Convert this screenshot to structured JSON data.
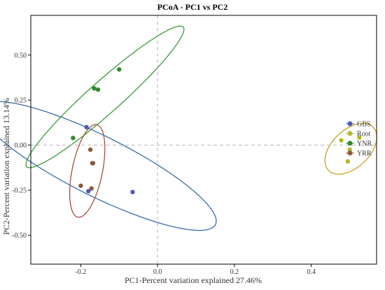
{
  "chart_data": {
    "type": "scatter",
    "title": "PCoA - PC1 vs PC2",
    "xlabel": "PC1-Percent variation explained 27.46%",
    "ylabel": "PC2-Percent variation explained 13.14%",
    "xlim": [
      -0.33,
      0.57
    ],
    "ylim": [
      -0.66,
      0.72
    ],
    "xticks": [
      {
        "value": -0.2,
        "label": "-0.2"
      },
      {
        "value": 0.0,
        "label": "0.0"
      },
      {
        "value": 0.2,
        "label": "0.2"
      },
      {
        "value": 0.4,
        "label": "0.4"
      }
    ],
    "yticks": [
      {
        "value": 0.5,
        "label": "0.50"
      },
      {
        "value": 0.25,
        "label": "0.25"
      },
      {
        "value": 0.0,
        "label": "0.00"
      },
      {
        "value": -0.25,
        "label": "-0.25"
      },
      {
        "value": -0.5,
        "label": "-0.50"
      }
    ],
    "reference_lines": {
      "x": 0,
      "y": 0,
      "style": "dashed"
    },
    "grid": false,
    "legend_position": "right",
    "series": [
      {
        "name": "GBS",
        "color": "#4a5cb8",
        "points": [
          [
            -0.185,
            0.1
          ],
          [
            -0.18,
            -0.255
          ],
          [
            -0.065,
            -0.26
          ]
        ],
        "ellipse": {
          "center": [
            -0.155,
            -0.115
          ],
          "semi_major": 0.455,
          "semi_minor": 0.125,
          "angle_deg": -50,
          "stroke": "#3a6ba8"
        }
      },
      {
        "name": "Root",
        "color": "#b8b828",
        "points": [
          [
            0.478,
            0.027
          ],
          [
            0.525,
            0.042
          ],
          [
            0.5,
            -0.025
          ],
          [
            0.495,
            -0.09
          ]
        ],
        "ellipse": {
          "center": [
            0.503,
            -0.02
          ],
          "semi_major": 0.145,
          "semi_minor": 0.058,
          "angle_deg": 75,
          "stroke": "#c8a020"
        }
      },
      {
        "name": "YNR",
        "color": "#2e8b2e",
        "points": [
          [
            -0.22,
            0.04
          ],
          [
            -0.165,
            0.315
          ],
          [
            -0.155,
            0.308
          ],
          [
            -0.1,
            0.42
          ]
        ],
        "ellipse": {
          "center": [
            -0.137,
            0.268
          ],
          "semi_major": 0.44,
          "semi_minor": 0.055,
          "angle_deg": 63,
          "stroke": "#3a9a3a"
        }
      },
      {
        "name": "YRR",
        "color": "#8b5a3c",
        "points": [
          [
            -0.175,
            -0.025
          ],
          [
            -0.17,
            -0.1
          ],
          [
            -0.168,
            -0.1
          ],
          [
            -0.2,
            -0.225
          ],
          [
            -0.172,
            -0.24
          ]
        ],
        "ellipse": {
          "center": [
            -0.183,
            -0.143
          ],
          "semi_major": 0.258,
          "semi_minor": 0.04,
          "angle_deg": 85,
          "stroke": "#a0503c"
        }
      }
    ]
  }
}
